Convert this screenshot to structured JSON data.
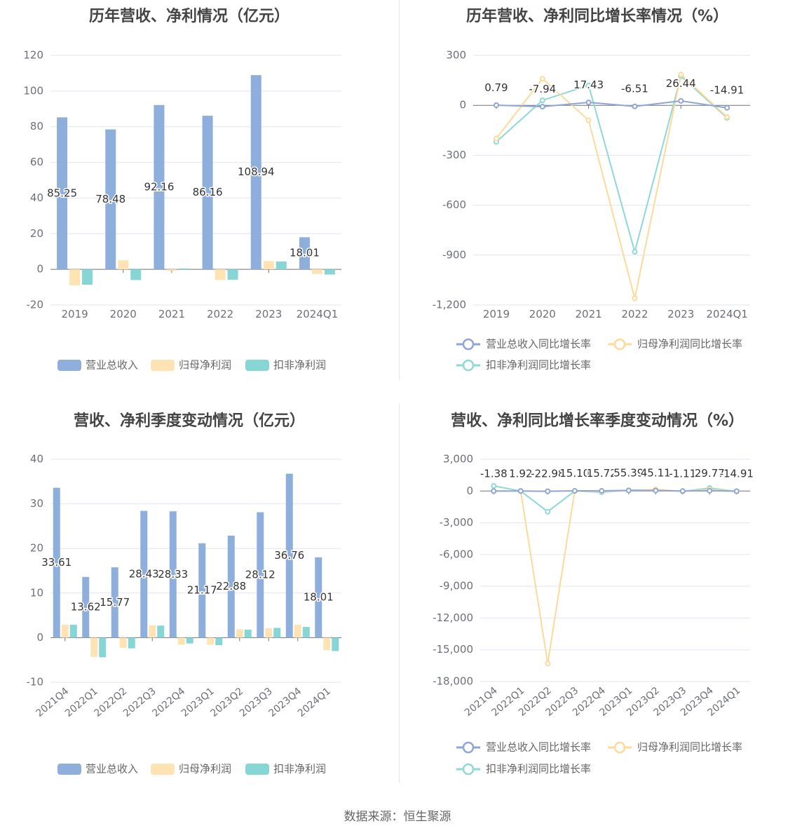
{
  "footer": {
    "source": "数据来源：恒生聚源"
  },
  "colors": {
    "revenue": "#8EAEDC",
    "net_profit": "#FFE3B3",
    "deducted_profit": "#86D6D6",
    "revenue_line": "#8EA5D8",
    "net_line": "#FDD99A",
    "deducted_line": "#8ED8D8"
  },
  "chart_data": [
    {
      "type": "bar",
      "title": "历年营收、净利情况（亿元）",
      "categories": [
        "2019",
        "2020",
        "2021",
        "2022",
        "2023",
        "2024Q1"
      ],
      "series": [
        {
          "name": "营业总收入",
          "values": [
            85.25,
            78.48,
            92.16,
            86.16,
            108.94,
            18.01
          ],
          "labels": [
            "85.25",
            "78.48",
            "92.16",
            "86.16",
            "108.94",
            "18.01"
          ]
        },
        {
          "name": "归母净利润",
          "values": [
            -9.0,
            5.1,
            -0.8,
            -6.0,
            4.7,
            -2.6
          ]
        },
        {
          "name": "扣非净利润",
          "values": [
            -8.6,
            -6.0,
            0.5,
            -5.8,
            4.4,
            -2.9
          ]
        }
      ],
      "ylim": [
        -20,
        120
      ],
      "yticks": [
        "-20",
        "0",
        "20",
        "40",
        "60",
        "80",
        "100",
        "120"
      ],
      "legend": "bottom"
    },
    {
      "type": "line",
      "title": "历年营收、净利同比增长率情况（%）",
      "categories": [
        "2019",
        "2020",
        "2021",
        "2022",
        "2023",
        "2024Q1"
      ],
      "series": [
        {
          "name": "营业总收入同比增长率",
          "values": [
            0.79,
            -7.94,
            17.43,
            -6.51,
            26.44,
            -14.91
          ],
          "labels": [
            "0.79",
            "-7.94",
            "17.43",
            "-6.51",
            "26.44",
            "-14.91"
          ]
        },
        {
          "name": "归母净利润同比增长率",
          "values": [
            -200,
            160,
            -90,
            -1160,
            185,
            -70
          ]
        },
        {
          "name": "扣非净利润同比增长率",
          "values": [
            -220,
            30,
            120,
            -880,
            175,
            -75
          ]
        }
      ],
      "ylim": [
        -1200,
        300
      ],
      "yticks": [
        "-1,200",
        "-900",
        "-600",
        "-300",
        "0",
        "300"
      ],
      "legend": "bottom"
    },
    {
      "type": "bar",
      "title": "营收、净利季度变动情况（亿元）",
      "categories": [
        "2021Q4",
        "2022Q1",
        "2022Q2",
        "2022Q3",
        "2022Q4",
        "2023Q1",
        "2023Q2",
        "2023Q3",
        "2023Q4",
        "2024Q1"
      ],
      "series": [
        {
          "name": "营业总收入",
          "values": [
            33.61,
            13.62,
            15.77,
            28.43,
            28.33,
            21.17,
            22.88,
            28.12,
            36.76,
            18.01
          ],
          "labels": [
            "33.61",
            "13.62",
            "15.77",
            "28.43",
            "28.33",
            "21.17",
            "22.88",
            "28.12",
            "36.76",
            "18.01"
          ]
        },
        {
          "name": "归母净利润",
          "values": [
            2.9,
            -4.3,
            -2.3,
            2.8,
            -1.6,
            -1.6,
            1.9,
            2.1,
            2.9,
            -2.8
          ]
        },
        {
          "name": "扣非净利润",
          "values": [
            2.9,
            -4.4,
            -2.4,
            2.7,
            -1.3,
            -1.7,
            1.8,
            2.2,
            2.4,
            -3.0
          ]
        }
      ],
      "ylim": [
        -10,
        40
      ],
      "yticks": [
        "-10",
        "0",
        "10",
        "20",
        "30",
        "40"
      ],
      "legend": "bottom"
    },
    {
      "type": "line",
      "title": "营收、净利同比增长率季度变动情况（%）",
      "categories": [
        "2021Q4",
        "2022Q1",
        "2022Q2",
        "2022Q3",
        "2022Q4",
        "2023Q1",
        "2023Q2",
        "2023Q3",
        "2023Q4",
        "2024Q1"
      ],
      "series": [
        {
          "name": "营业总收入同比增长率",
          "values": [
            -1.38,
            1.92,
            -22.98,
            15.1,
            15.72,
            55.39,
            45.11,
            -1.11,
            29.77,
            -14.91
          ],
          "labels": [
            "-1.38",
            "1.92",
            "-22.98",
            "15.10",
            "15.72",
            "55.39",
            "45.11",
            "-1.11",
            "29.77",
            "-14.91"
          ]
        },
        {
          "name": "归母净利润同比增长率",
          "values": [
            -30,
            0,
            -16300,
            0,
            -30,
            30,
            150,
            -20,
            150,
            -30
          ]
        },
        {
          "name": "扣非净利润同比增长率",
          "values": [
            480,
            0,
            -1950,
            0,
            -120,
            70,
            130,
            -30,
            280,
            -40
          ]
        }
      ],
      "ylim": [
        -18000,
        3000
      ],
      "yticks": [
        "-18,000",
        "-15,000",
        "-12,000",
        "-9,000",
        "-6,000",
        "-3,000",
        "0",
        "3,000"
      ],
      "legend": "bottom"
    }
  ]
}
